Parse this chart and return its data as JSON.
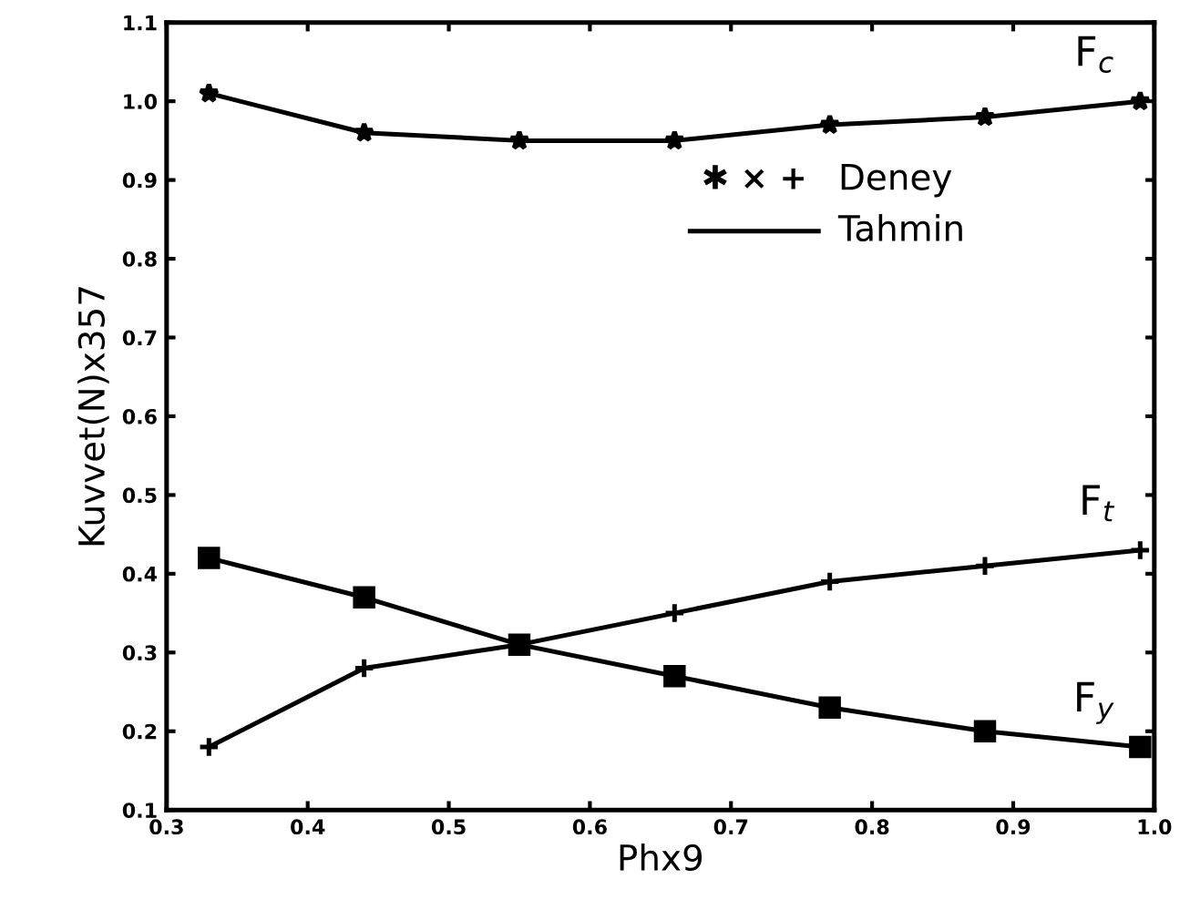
{
  "chart_data": {
    "type": "line",
    "xlabel": "Phx9",
    "ylabel": "Kuvvet(N)x357",
    "x": [
      0.33,
      0.44,
      0.55,
      0.66,
      0.77,
      0.88,
      0.99
    ],
    "series": [
      {
        "name": "F$_{c}$",
        "color": "#000000",
        "marker": "star",
        "values": [
          1.01,
          0.96,
          0.95,
          0.95,
          0.97,
          0.98,
          1.0
        ]
      },
      {
        "name": "F$_{y}$",
        "color": "#000000",
        "marker": "square",
        "values": [
          0.42,
          0.37,
          0.31,
          0.27,
          0.23,
          0.2,
          0.18
        ]
      },
      {
        "name": "F$_{t}$",
        "color": "#000000",
        "marker": "cross",
        "values": [
          0.18,
          0.28,
          0.31,
          0.35,
          0.39,
          0.41,
          0.43
        ]
      }
    ],
    "annotations": [
      "✱ × +",
      "Deney",
      "Tahmin"
    ],
    "legend": "right",
    "line_style": "solid",
    "xlim": [
      0.3,
      1.0
    ],
    "xticks": [
      0.3,
      0.4,
      0.5,
      0.6,
      0.7,
      0.8,
      0.9,
      {
        "value": 1,
        "label": "1.0"
      }
    ],
    "ylim": [
      0.1,
      1.1
    ],
    "yticks": [
      0.1,
      0.2,
      0.3,
      0.4,
      0.5,
      0.6,
      0.7,
      0.8,
      0.9,
      {
        "value": 1,
        "label": "1.0"
      },
      1.1
    ]
  }
}
